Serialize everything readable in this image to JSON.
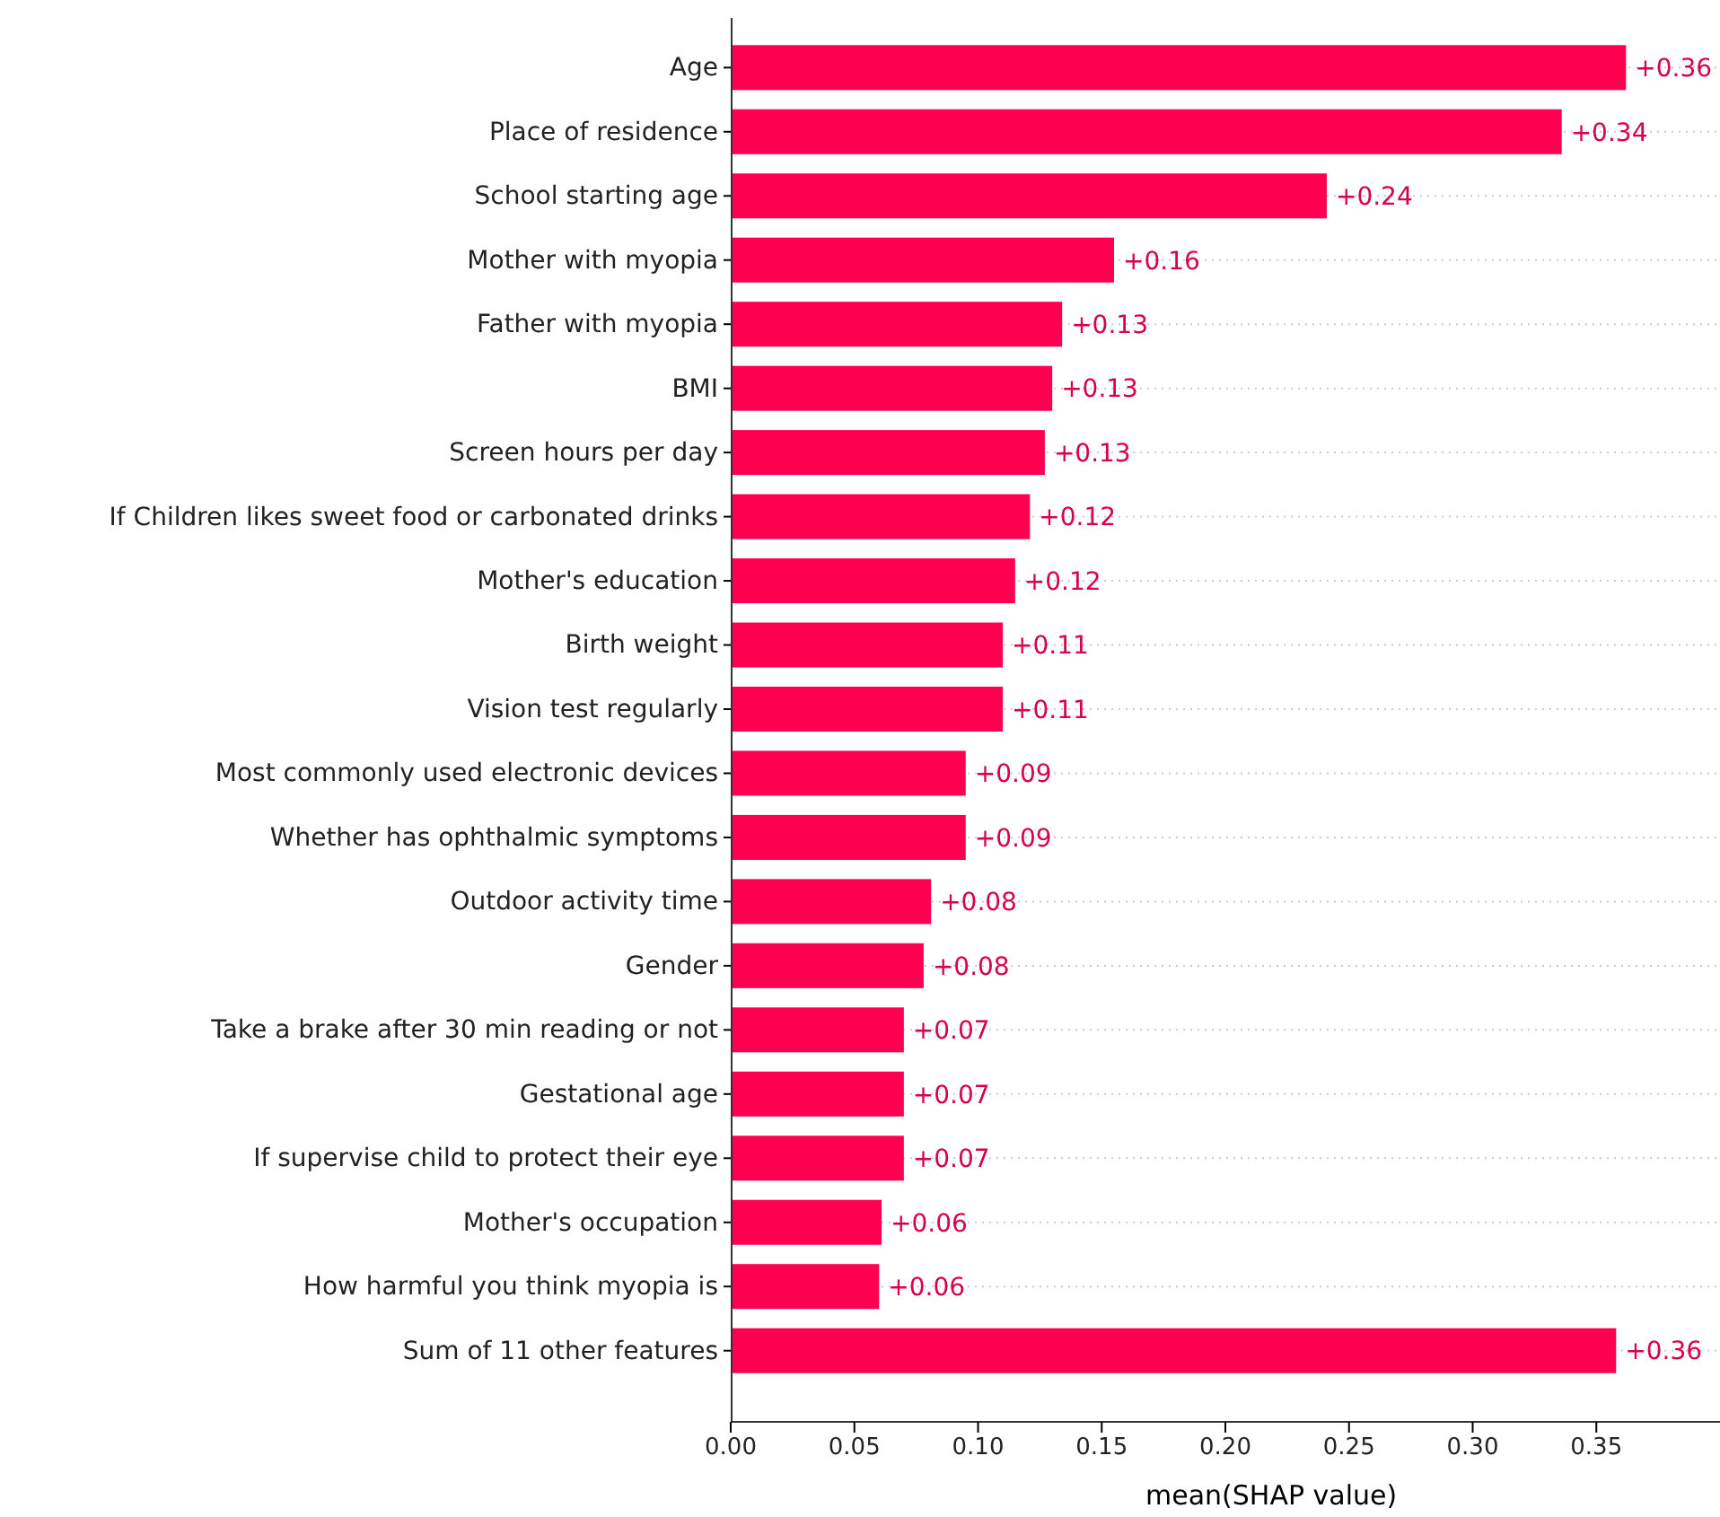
{
  "chart_data": {
    "type": "bar",
    "orientation": "horizontal",
    "xlabel": "mean(SHAP value)",
    "categories": [
      "Age",
      "Place of residence",
      "School starting age",
      "Mother with myopia",
      "Father with myopia",
      "BMI",
      "Screen hours per day",
      "If Children likes sweet food or carbonated drinks",
      "Mother's education",
      "Birth weight",
      "Vision test regularly",
      "Most commonly used electronic devices",
      "Whether has ophthalmic symptoms",
      "Outdoor activity time",
      "Gender",
      "Take a brake after 30 min reading or not",
      "Gestational age",
      "If supervise child to protect their eye",
      "Mother's occupation",
      "How harmful you think myopia is",
      "Sum of 11 other features"
    ],
    "values": [
      0.362,
      0.336,
      0.241,
      0.155,
      0.134,
      0.13,
      0.127,
      0.121,
      0.115,
      0.11,
      0.11,
      0.095,
      0.095,
      0.081,
      0.078,
      0.07,
      0.07,
      0.07,
      0.061,
      0.06,
      0.358
    ],
    "value_labels": [
      "+0.36",
      "+0.34",
      "+0.24",
      "+0.16",
      "+0.13",
      "+0.13",
      "+0.13",
      "+0.12",
      "+0.12",
      "+0.11",
      "+0.11",
      "+0.09",
      "+0.09",
      "+0.08",
      "+0.08",
      "+0.07",
      "+0.07",
      "+0.07",
      "+0.06",
      "+0.06",
      "+0.36"
    ],
    "color": "#ff0051",
    "xlim": [
      0,
      0.4
    ],
    "xticks": [
      {
        "value": 0,
        "label": "0.00"
      },
      0.05,
      {
        "value": 0.1,
        "label": "0.10"
      },
      0.15,
      {
        "value": 0.2,
        "label": "0.20"
      },
      0.25,
      {
        "value": 0.3,
        "label": "0.30"
      },
      0.35
    ],
    "grid": "y"
  }
}
